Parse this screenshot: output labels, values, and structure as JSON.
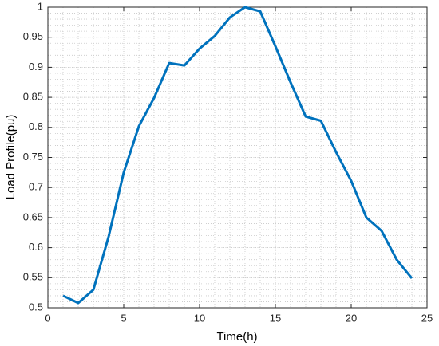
{
  "chart_data": {
    "type": "line",
    "xlabel": "Time(h)",
    "ylabel": "Load Profile(pu)",
    "x": [
      1,
      2,
      3,
      4,
      5,
      6,
      7,
      8,
      9,
      10,
      11,
      12,
      13,
      14,
      15,
      16,
      17,
      18,
      19,
      20,
      21,
      22,
      23,
      24
    ],
    "series": [
      {
        "name": "Load Profile",
        "color": "#0072bd",
        "values": [
          0.52,
          0.508,
          0.53,
          0.618,
          0.725,
          0.802,
          0.849,
          0.907,
          0.903,
          0.931,
          0.952,
          0.983,
          1.0,
          0.993,
          0.935,
          0.875,
          0.818,
          0.811,
          0.759,
          0.711,
          0.65,
          0.628,
          0.58,
          0.549
        ]
      }
    ],
    "xlim": [
      0,
      25
    ],
    "xticks": [
      0,
      5,
      10,
      15,
      20,
      25
    ],
    "ylim": [
      0.5,
      1
    ],
    "yticks": [
      0.5,
      0.55,
      0.6,
      0.65,
      0.7,
      0.75,
      0.8,
      0.85,
      0.9,
      0.95,
      1
    ],
    "grid": true,
    "minor_grid": true
  }
}
